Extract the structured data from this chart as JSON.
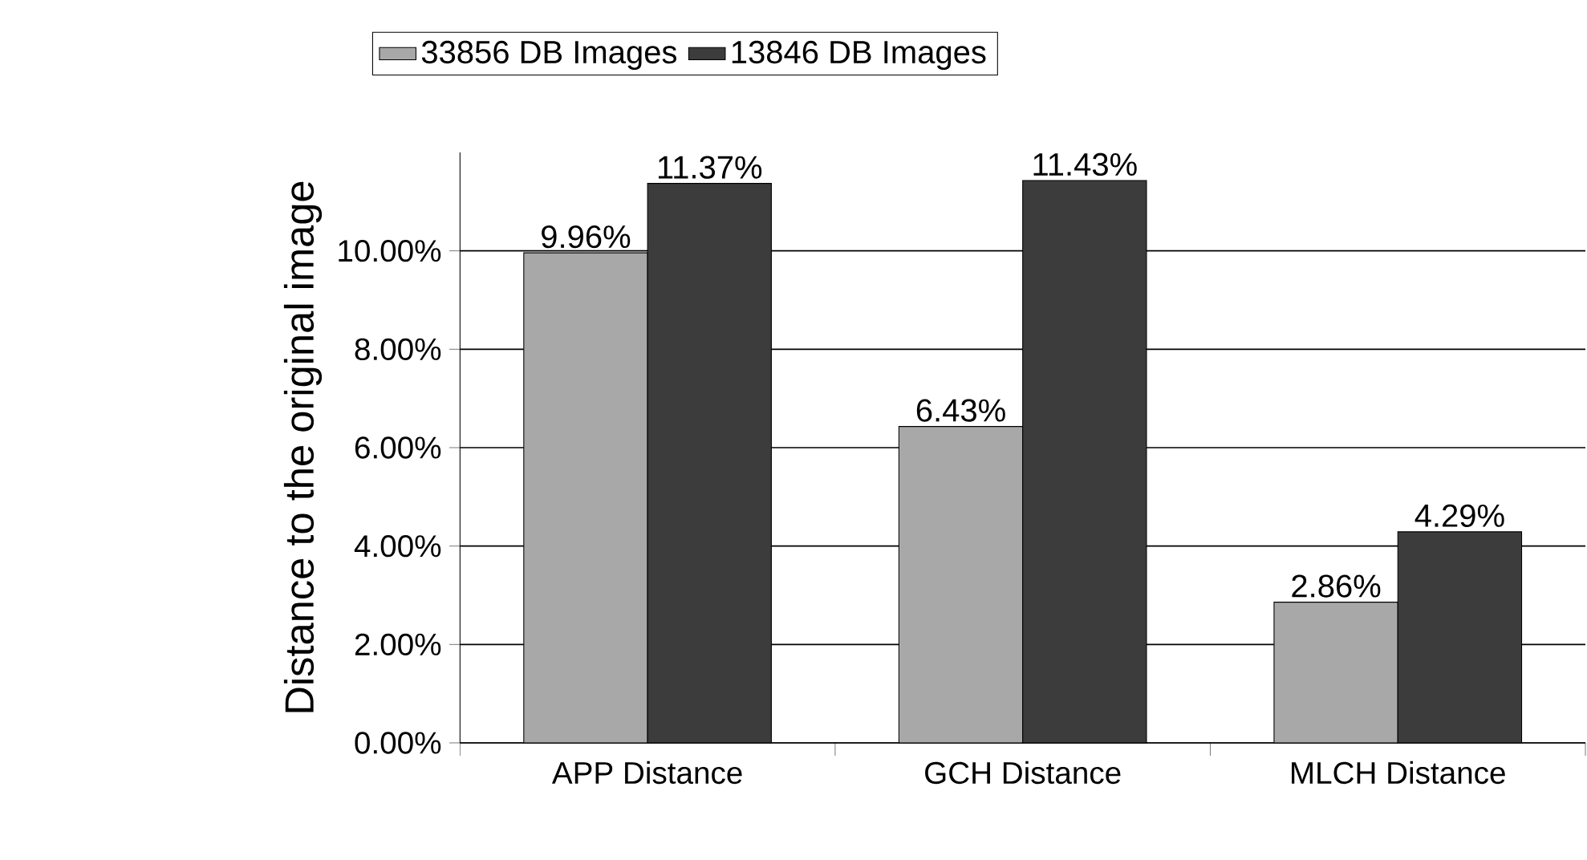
{
  "chart_data": {
    "type": "bar",
    "ylabel": "Distance to the original image",
    "categories": [
      "APP Distance",
      "GCH Distance",
      "MLCH Distance"
    ],
    "series": [
      {
        "name": "33856 DB  Images",
        "color": "#a8a8a8",
        "values": [
          9.96,
          6.43,
          2.86
        ],
        "value_labels": [
          "9.96%",
          "6.43%",
          "2.86%"
        ]
      },
      {
        "name": "13846 DB Images",
        "color": "#3c3c3c",
        "values": [
          11.37,
          11.43,
          4.29
        ],
        "value_labels": [
          "11.37%",
          "11.43%",
          "4.29%"
        ]
      }
    ],
    "ylim": [
      0,
      12
    ],
    "yticks": [
      {
        "value": 0,
        "label": "0.00%"
      },
      {
        "value": 2,
        "label": "2.00%"
      },
      {
        "value": 4,
        "label": "4.00%"
      },
      {
        "value": 6,
        "label": "6.00%"
      },
      {
        "value": 8,
        "label": "8.00%"
      },
      {
        "value": 10,
        "label": "10.00%"
      }
    ],
    "grid": "y",
    "legend": "top"
  }
}
